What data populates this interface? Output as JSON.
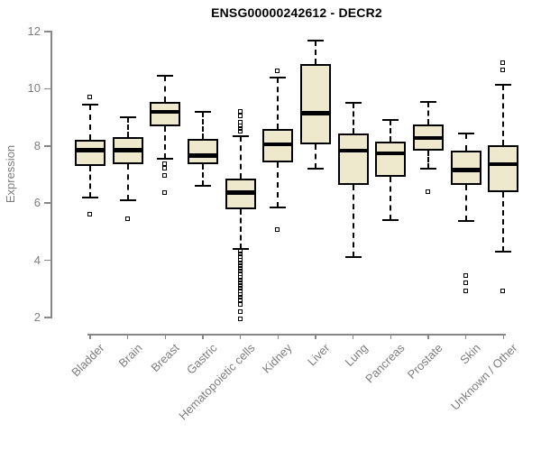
{
  "chart_data": {
    "type": "boxplot",
    "title": "ENSG00000242612 - DECR2",
    "xlabel": "",
    "ylabel": "Expression",
    "ylim": [
      2,
      12
    ],
    "yticks": [
      2,
      4,
      6,
      8,
      10,
      12
    ],
    "grid": "off",
    "legend": "none",
    "categories": [
      "Bladder",
      "Brain",
      "Breast",
      "Gastric",
      "Hematopoietic cells",
      "Kidney",
      "Liver",
      "Lung",
      "Pancreas",
      "Prostate",
      "Skin",
      "Unknown / Other"
    ],
    "boxes": [
      {
        "category": "Bladder",
        "whisker_low": 6.2,
        "q1": 7.3,
        "median": 7.85,
        "q3": 8.2,
        "whisker_high": 9.45,
        "outliers": [
          9.7,
          5.6
        ]
      },
      {
        "category": "Brain",
        "whisker_low": 6.1,
        "q1": 7.35,
        "median": 7.85,
        "q3": 8.3,
        "whisker_high": 9.0,
        "outliers": [
          5.45
        ]
      },
      {
        "category": "Breast",
        "whisker_low": 7.55,
        "q1": 8.7,
        "median": 9.2,
        "q3": 9.55,
        "whisker_high": 10.45,
        "outliers": [
          7.35,
          7.22,
          6.95,
          6.35
        ]
      },
      {
        "category": "Gastric",
        "whisker_low": 6.6,
        "q1": 7.37,
        "median": 7.67,
        "q3": 8.26,
        "whisker_high": 9.2,
        "outliers": []
      },
      {
        "category": "Hematopoietic cells",
        "whisker_low": 4.4,
        "q1": 5.8,
        "median": 6.37,
        "q3": 6.85,
        "whisker_high": 8.35,
        "outliers": [
          9.2,
          9.05,
          8.8,
          8.7,
          8.6,
          8.5,
          4.3,
          4.2,
          4.1,
          4.0,
          3.9,
          3.8,
          3.7,
          3.6,
          3.5,
          3.4,
          3.3,
          3.2,
          3.1,
          3.0,
          2.9,
          2.8,
          2.7,
          2.6,
          2.45,
          2.2,
          1.95
        ]
      },
      {
        "category": "Kidney",
        "whisker_low": 5.85,
        "q1": 7.42,
        "median": 8.05,
        "q3": 8.58,
        "whisker_high": 10.4,
        "outliers": [
          10.62,
          5.05
        ]
      },
      {
        "category": "Liver",
        "whisker_low": 7.2,
        "q1": 8.05,
        "median": 9.15,
        "q3": 10.85,
        "whisker_high": 11.7,
        "outliers": []
      },
      {
        "category": "Lung",
        "whisker_low": 4.1,
        "q1": 6.63,
        "median": 7.84,
        "q3": 8.44,
        "whisker_high": 9.5,
        "outliers": []
      },
      {
        "category": "Pancreas",
        "whisker_low": 5.42,
        "q1": 6.92,
        "median": 7.74,
        "q3": 8.14,
        "whisker_high": 8.9,
        "outliers": []
      },
      {
        "category": "Prostate",
        "whisker_low": 7.2,
        "q1": 7.84,
        "median": 8.28,
        "q3": 8.76,
        "whisker_high": 9.55,
        "outliers": [
          6.37
        ]
      },
      {
        "category": "Skin",
        "whisker_low": 5.37,
        "q1": 6.63,
        "median": 7.16,
        "q3": 7.84,
        "whisker_high": 8.42,
        "outliers": [
          3.45,
          3.2,
          2.9
        ]
      },
      {
        "category": "Unknown / Other",
        "whisker_low": 4.3,
        "q1": 6.37,
        "median": 7.37,
        "q3": 8.02,
        "whisker_high": 10.15,
        "outliers": [
          10.9,
          10.65,
          2.9
        ]
      }
    ],
    "colors": {
      "box_fill": "#EEE8CD",
      "box_stroke": "#000000",
      "axis": "#878787",
      "tick_text": "#7d7d7d",
      "title_text": "#000000",
      "background": "#ffffff"
    }
  }
}
